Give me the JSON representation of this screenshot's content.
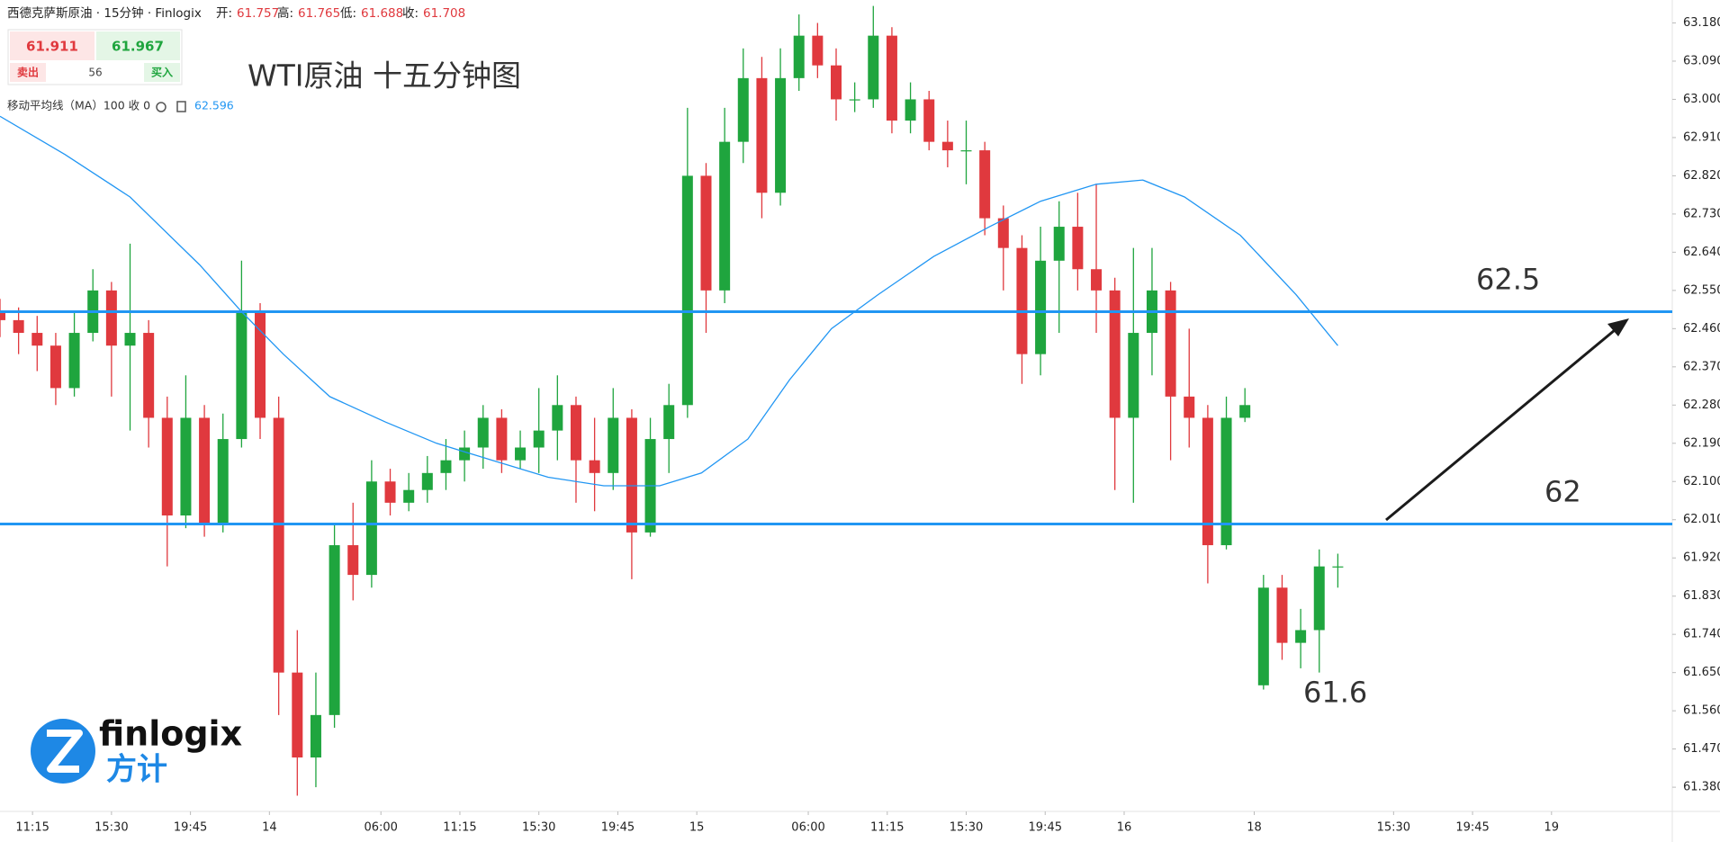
{
  "header": {
    "symbol": "西德克萨斯原油 · 15分钟 · Finlogix",
    "open_label": "开:",
    "open": "61.757",
    "high_label": "高:",
    "high": "61.765",
    "low_label": "低:",
    "low": "61.688",
    "close_label": "收:",
    "close": "61.708"
  },
  "quote": {
    "bid": "61.911",
    "ask": "61.967",
    "sell": "卖出",
    "spread": "56",
    "buy": "买入"
  },
  "logo": {
    "name": "finlogix",
    "cn": "方计"
  },
  "chart_data": {
    "type": "candlestick",
    "title": "WTI原油 十五分钟图",
    "x": [
      0,
      4,
      8,
      12,
      16,
      20,
      24,
      28,
      32,
      36,
      40,
      44,
      48,
      52,
      56,
      60,
      64,
      68,
      72,
      76,
      80,
      84,
      88,
      92,
      96,
      100,
      104,
      108,
      112,
      116,
      120,
      124,
      128,
      132,
      136,
      140,
      144,
      148,
      152,
      156,
      160,
      164,
      168,
      172,
      176,
      180,
      184,
      188,
      192,
      196,
      200,
      204,
      208,
      212,
      216,
      220,
      224,
      228,
      232,
      236,
      240,
      244,
      248,
      252,
      256,
      260,
      264,
      268,
      272,
      276,
      280,
      284,
      288
    ],
    "open": [
      62.5,
      62.48,
      62.45,
      62.42,
      62.32,
      62.45,
      62.55,
      62.42,
      62.45,
      62.25,
      62.02,
      62.25,
      62.0,
      62.2,
      62.5,
      62.25,
      61.65,
      61.45,
      61.55,
      61.95,
      61.88,
      62.1,
      62.05,
      62.08,
      62.12,
      62.15,
      62.18,
      62.25,
      62.15,
      62.18,
      62.22,
      62.28,
      62.15,
      62.12,
      62.25,
      61.98,
      62.2,
      62.28,
      62.82,
      62.55,
      62.9,
      63.05,
      62.78,
      63.05,
      63.15,
      63.08,
      63.0,
      63.0,
      63.15,
      62.95,
      63.0,
      62.9,
      62.88,
      62.88,
      62.72,
      62.65,
      62.4,
      62.62,
      62.7,
      62.6,
      62.55,
      62.25,
      62.45,
      62.55,
      62.3,
      62.25,
      61.95,
      62.25,
      61.62,
      61.85,
      61.72,
      61.75,
      61.9
    ],
    "high": [
      62.53,
      62.51,
      62.49,
      62.45,
      62.5,
      62.6,
      62.57,
      62.66,
      62.48,
      62.3,
      62.35,
      62.28,
      62.26,
      62.62,
      62.52,
      62.3,
      61.75,
      61.65,
      62.0,
      62.05,
      62.15,
      62.13,
      62.12,
      62.16,
      62.2,
      62.22,
      62.28,
      62.27,
      62.22,
      62.32,
      62.35,
      62.3,
      62.25,
      62.32,
      62.27,
      62.25,
      62.33,
      62.98,
      62.85,
      62.98,
      63.12,
      63.1,
      63.12,
      63.2,
      63.18,
      63.12,
      63.04,
      63.22,
      63.17,
      63.04,
      63.02,
      62.95,
      62.95,
      62.9,
      62.75,
      62.68,
      62.7,
      62.76,
      62.78,
      62.8,
      62.58,
      62.65,
      62.65,
      62.57,
      62.46,
      62.28,
      62.3,
      62.32,
      61.88,
      61.88,
      61.8,
      61.94,
      61.93
    ],
    "low": [
      62.44,
      62.4,
      62.36,
      62.28,
      62.3,
      62.43,
      62.3,
      62.22,
      62.18,
      61.9,
      61.99,
      61.97,
      61.98,
      62.18,
      62.2,
      61.55,
      61.36,
      61.38,
      61.52,
      61.82,
      61.85,
      62.02,
      62.03,
      62.05,
      62.08,
      62.1,
      62.13,
      62.12,
      62.13,
      62.12,
      62.15,
      62.05,
      62.03,
      62.08,
      61.87,
      61.97,
      62.12,
      62.25,
      62.45,
      62.52,
      62.85,
      62.72,
      62.75,
      63.02,
      63.05,
      62.95,
      62.97,
      62.98,
      62.92,
      62.92,
      62.88,
      62.84,
      62.8,
      62.68,
      62.55,
      62.33,
      62.35,
      62.45,
      62.55,
      62.45,
      62.08,
      62.05,
      62.35,
      62.15,
      62.18,
      61.86,
      61.94,
      62.24,
      61.61,
      61.68,
      61.66,
      61.65,
      61.85
    ],
    "close": [
      62.48,
      62.45,
      62.42,
      62.32,
      62.45,
      62.55,
      62.42,
      62.45,
      62.25,
      62.02,
      62.25,
      62.0,
      62.2,
      62.5,
      62.25,
      61.65,
      61.45,
      61.55,
      61.95,
      61.88,
      62.1,
      62.05,
      62.08,
      62.12,
      62.15,
      62.18,
      62.25,
      62.15,
      62.18,
      62.22,
      62.28,
      62.15,
      62.12,
      62.25,
      61.98,
      62.2,
      62.28,
      62.82,
      62.55,
      62.9,
      63.05,
      62.78,
      63.05,
      63.15,
      63.08,
      63.0,
      63.0,
      63.15,
      62.95,
      63.0,
      62.9,
      62.88,
      62.88,
      62.72,
      62.65,
      62.4,
      62.62,
      62.7,
      62.6,
      62.55,
      62.25,
      62.45,
      62.55,
      62.3,
      62.25,
      61.95,
      62.25,
      62.28,
      61.85,
      61.72,
      61.75,
      61.9,
      61.9
    ],
    "up_color": "#1fa53e",
    "down_color": "#e0393e",
    "ma": {
      "name": "移动平均线（MA）100 收 0",
      "current": 62.596,
      "color": "#2196f3",
      "x": [
        0,
        14,
        28,
        43,
        52,
        61,
        71,
        83,
        94,
        106,
        118,
        130,
        142,
        151,
        161,
        170,
        179,
        189,
        201,
        213,
        224,
        236,
        246,
        255,
        267,
        279,
        288
      ],
      "values": [
        62.96,
        62.87,
        62.77,
        62.61,
        62.5,
        62.4,
        62.3,
        62.24,
        62.19,
        62.15,
        62.11,
        62.09,
        62.09,
        62.12,
        62.2,
        62.34,
        62.46,
        62.54,
        62.63,
        62.7,
        62.76,
        62.8,
        62.81,
        62.77,
        62.68,
        62.54,
        62.42
      ]
    },
    "levels": [
      62.5,
      62
    ],
    "level_color": "#2196f3",
    "annotations": [
      61.6
    ],
    "xlim": [
      0,
      360
    ],
    "ylim": [
      61.323,
      63.234
    ],
    "yticks": [
      {
        "value": 61.38,
        "label": "61.380"
      },
      {
        "value": 61.47,
        "label": "61.470"
      },
      {
        "value": 61.56,
        "label": "61.560"
      },
      {
        "value": 61.65,
        "label": "61.650"
      },
      {
        "value": 61.74,
        "label": "61.740"
      },
      {
        "value": 61.83,
        "label": "61.830"
      },
      {
        "value": 61.92,
        "label": "61.920"
      },
      {
        "value": 62.01,
        "label": "62.010"
      },
      {
        "value": 62.1,
        "label": "62.100"
      },
      {
        "value": 62.19,
        "label": "62.190"
      },
      {
        "value": 62.28,
        "label": "62.280"
      },
      {
        "value": 62.37,
        "label": "62.370"
      },
      {
        "value": 62.46,
        "label": "62.460"
      },
      {
        "value": 62.55,
        "label": "62.550"
      },
      {
        "value": 62.64,
        "label": "62.640"
      },
      {
        "value": 62.73,
        "label": "62.730"
      },
      {
        "value": 62.82,
        "label": "62.820"
      },
      {
        "value": 62.91,
        "label": "62.910"
      },
      {
        "value": 63,
        "label": "63.000"
      },
      {
        "value": 63.09,
        "label": "63.090"
      },
      {
        "value": 63.18,
        "label": "63.180"
      }
    ],
    "xticks": [
      {
        "value": 7,
        "label": "11:15"
      },
      {
        "value": 24,
        "label": "15:30"
      },
      {
        "value": 41,
        "label": "19:45"
      },
      {
        "value": 58,
        "label": "14"
      },
      {
        "value": 82,
        "label": "06:00"
      },
      {
        "value": 99,
        "label": "11:15"
      },
      {
        "value": 116,
        "label": "15:30"
      },
      {
        "value": 133,
        "label": "19:45"
      },
      {
        "value": 150,
        "label": "15"
      },
      {
        "value": 174,
        "label": "06:00"
      },
      {
        "value": 191,
        "label": "11:15"
      },
      {
        "value": 208,
        "label": "15:30"
      },
      {
        "value": 225,
        "label": "19:45"
      },
      {
        "value": 242,
        "label": "16"
      },
      {
        "value": 270,
        "label": "18"
      },
      {
        "value": 300,
        "label": "15:30"
      },
      {
        "value": 317,
        "label": "19:45"
      },
      {
        "value": 334,
        "label": "19"
      }
    ]
  }
}
